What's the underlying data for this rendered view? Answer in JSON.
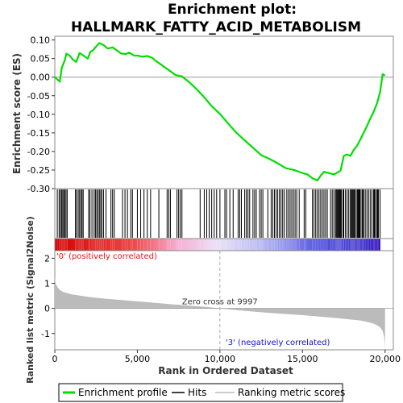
{
  "chart_data": {
    "type": "line",
    "title_line1": "Enrichment plot:",
    "title_line2": "HALLMARK_FATTY_ACID_METABOLISM",
    "es_panel": {
      "ylabel": "Enrichment score (ES)",
      "ylim": [
        -0.3,
        0.11
      ],
      "yticks": [
        "0.10",
        "0.05",
        "0.00",
        "-0.05",
        "-0.10",
        "-0.15",
        "-0.20",
        "-0.25",
        "-0.30"
      ],
      "ytick_values": [
        0.1,
        0.05,
        0.0,
        -0.05,
        -0.1,
        -0.15,
        -0.2,
        -0.25,
        -0.3
      ],
      "color": "#00dd00",
      "series": {
        "name": "Enrichment profile",
        "x": [
          0,
          300,
          420,
          600,
          700,
          900,
          1100,
          1300,
          1500,
          1700,
          2000,
          2150,
          2300,
          2500,
          2700,
          3000,
          3200,
          3500,
          3700,
          4000,
          4300,
          4500,
          4800,
          5000,
          5300,
          5600,
          5900,
          6100,
          6400,
          6700,
          7000,
          7300,
          7700,
          8100,
          8600,
          9000,
          9500,
          10000,
          10500,
          11000,
          11500,
          12000,
          12500,
          13000,
          13500,
          14000,
          14500,
          14800,
          15000,
          15300,
          15600,
          15900,
          16100,
          16300,
          16600,
          16900,
          17100,
          17300,
          17500,
          17700,
          17900,
          18100,
          18300,
          18500,
          18700,
          18900,
          19100,
          19300,
          19500,
          19700,
          19850,
          20000
        ],
        "y": [
          0.0,
          -0.012,
          0.025,
          0.045,
          0.063,
          0.058,
          0.047,
          0.041,
          0.065,
          0.059,
          0.05,
          0.068,
          0.072,
          0.082,
          0.092,
          0.085,
          0.077,
          0.08,
          0.074,
          0.064,
          0.062,
          0.066,
          0.058,
          0.058,
          0.055,
          0.057,
          0.052,
          0.044,
          0.035,
          0.025,
          0.016,
          0.006,
          0.002,
          -0.012,
          -0.033,
          -0.052,
          -0.078,
          -0.099,
          -0.125,
          -0.15,
          -0.17,
          -0.19,
          -0.21,
          -0.22,
          -0.232,
          -0.245,
          -0.25,
          -0.255,
          -0.258,
          -0.262,
          -0.272,
          -0.278,
          -0.265,
          -0.255,
          -0.258,
          -0.262,
          -0.257,
          -0.252,
          -0.212,
          -0.208,
          -0.212,
          -0.196,
          -0.185,
          -0.168,
          -0.15,
          -0.132,
          -0.112,
          -0.094,
          -0.072,
          -0.04,
          0.008,
          0.004
        ]
      },
      "hits_x": [
        150,
        260,
        340,
        410,
        480,
        540,
        610,
        680,
        750,
        1250,
        1320,
        1420,
        1500,
        1580,
        1650,
        1720,
        2050,
        2130,
        2250,
        2380,
        2460,
        2540,
        2620,
        2700,
        2780,
        2850,
        2950,
        3100,
        3400,
        3500,
        3600,
        4100,
        4250,
        4400,
        4600,
        4700,
        5000,
        5200,
        5400,
        5600,
        5800,
        6300,
        6800,
        6900,
        7000,
        7400,
        7500,
        7600,
        7700,
        8800,
        9050,
        9200,
        9350,
        9500,
        9650,
        9800,
        10000,
        10300,
        10400,
        10600,
        10800,
        11100,
        11200,
        11300,
        11500,
        11600,
        11700,
        11800,
        12000,
        12100,
        12200,
        12400,
        12500,
        12600,
        12900,
        13100,
        13200,
        13300,
        13400,
        13500,
        13600,
        13700,
        13800,
        13900,
        14050,
        14150,
        14250,
        14350,
        14450,
        14550,
        14650,
        14800,
        15100,
        15200,
        15600,
        15700,
        15800,
        15900,
        16000,
        16100,
        16200,
        16300,
        16400,
        16500,
        16700,
        16800,
        16900,
        17000,
        17050,
        17100,
        17150,
        17200,
        17250,
        17300,
        17350,
        17450,
        17500,
        17600,
        17700,
        17800,
        17900,
        17950,
        18000,
        18050,
        18100,
        18150,
        18200,
        18300,
        18350,
        18400,
        18450,
        18500,
        18600,
        18650,
        18700,
        18800,
        18900,
        19000,
        19100,
        19200,
        19300,
        19350,
        19400,
        19500,
        19550,
        19600,
        19700
      ]
    },
    "rank_panel": {
      "ylabel": "Ranked list metric (Signal2Noise)",
      "xlabel": "Rank in Ordered Dataset",
      "ylim": [
        -1.65,
        2.3
      ],
      "yticks": [
        "2",
        "1",
        "0",
        "-1"
      ],
      "ytick_values": [
        2,
        1,
        0,
        -1
      ],
      "xlim": [
        0,
        20500
      ],
      "xticks": [
        "0",
        "5,000",
        "10,000",
        "15,000",
        "20,000"
      ],
      "xtick_values": [
        0,
        5000,
        10000,
        15000,
        20000
      ],
      "metric_x": [
        0,
        50,
        150,
        300,
        500,
        1000,
        2000,
        3000,
        5000,
        7000,
        9000,
        9997,
        11000,
        13000,
        15000,
        17000,
        18500,
        19000,
        19400,
        19700,
        19850,
        19950,
        20000
      ],
      "metric_y": [
        1.3,
        1.0,
        0.86,
        0.74,
        0.66,
        0.56,
        0.46,
        0.39,
        0.28,
        0.17,
        0.07,
        0.0,
        -0.07,
        -0.18,
        -0.27,
        -0.38,
        -0.48,
        -0.55,
        -0.63,
        -0.75,
        -0.9,
        -1.15,
        -1.55
      ],
      "zero_cross_label": "Zero cross at 9997",
      "zero_cross_x": 9997,
      "pos_label": "'0' (positively correlated)",
      "neg_label": "'3' (negatively correlated)",
      "pos_color": "#ee1111",
      "neg_color": "#1111cc"
    },
    "total_rank": 20000,
    "legend": [
      {
        "label": "Enrichment profile",
        "color": "#00dd00"
      },
      {
        "label": "Hits",
        "color": "#000000"
      },
      {
        "label": "Ranking metric scores",
        "color": "#bbbbbb"
      }
    ]
  }
}
